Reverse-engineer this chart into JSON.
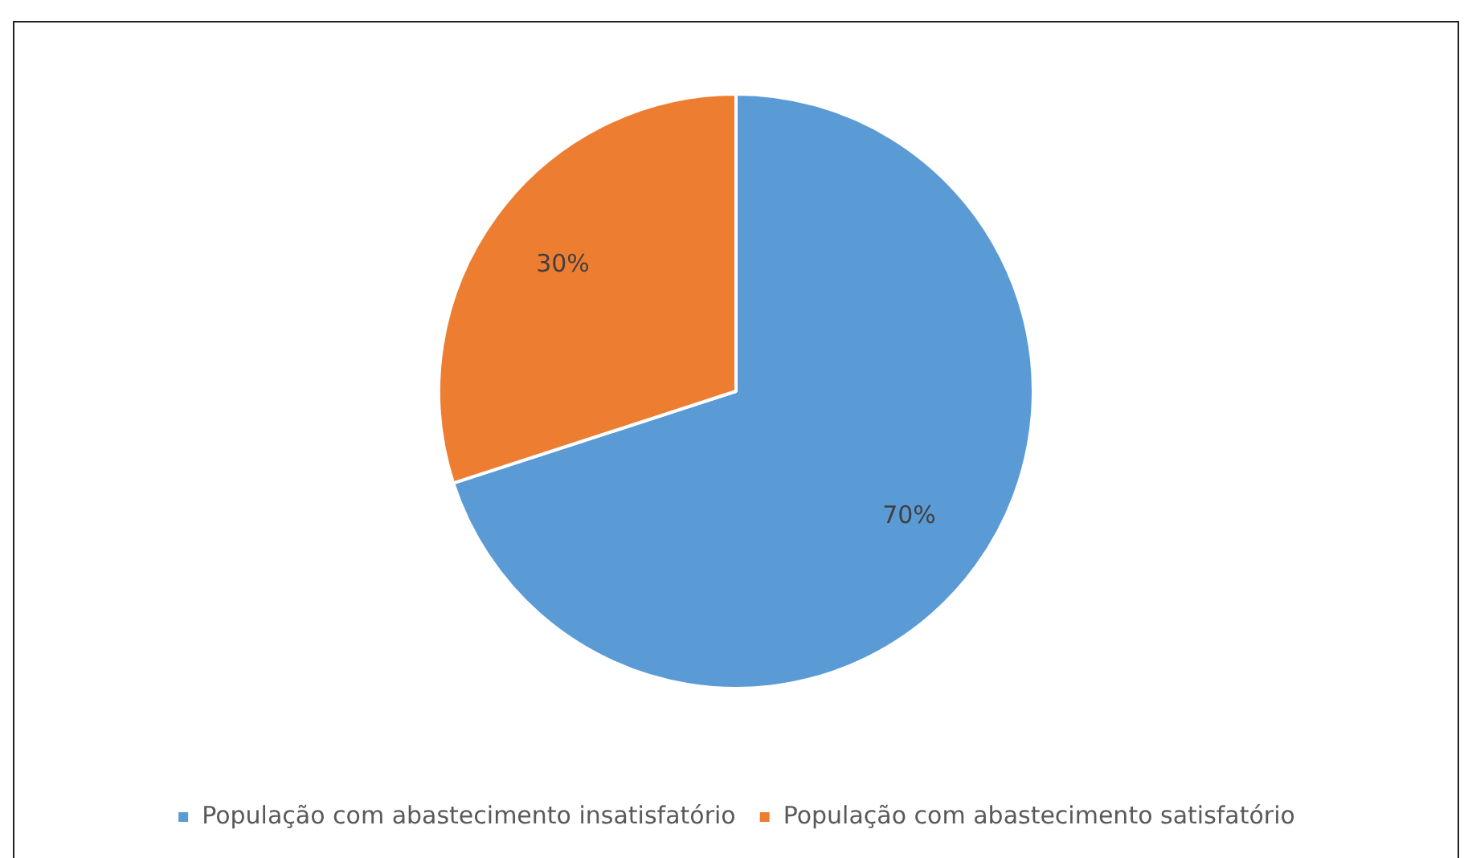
{
  "chart_data": {
    "type": "pie",
    "categories": [
      "População com abastecimento insatisfatório",
      "População com abastecimento satisfatório"
    ],
    "values": [
      70,
      30
    ],
    "colors": [
      "#5b9bd5",
      "#ed7d31"
    ],
    "value_labels": [
      "70%",
      "30%"
    ],
    "legend": "bottom"
  }
}
